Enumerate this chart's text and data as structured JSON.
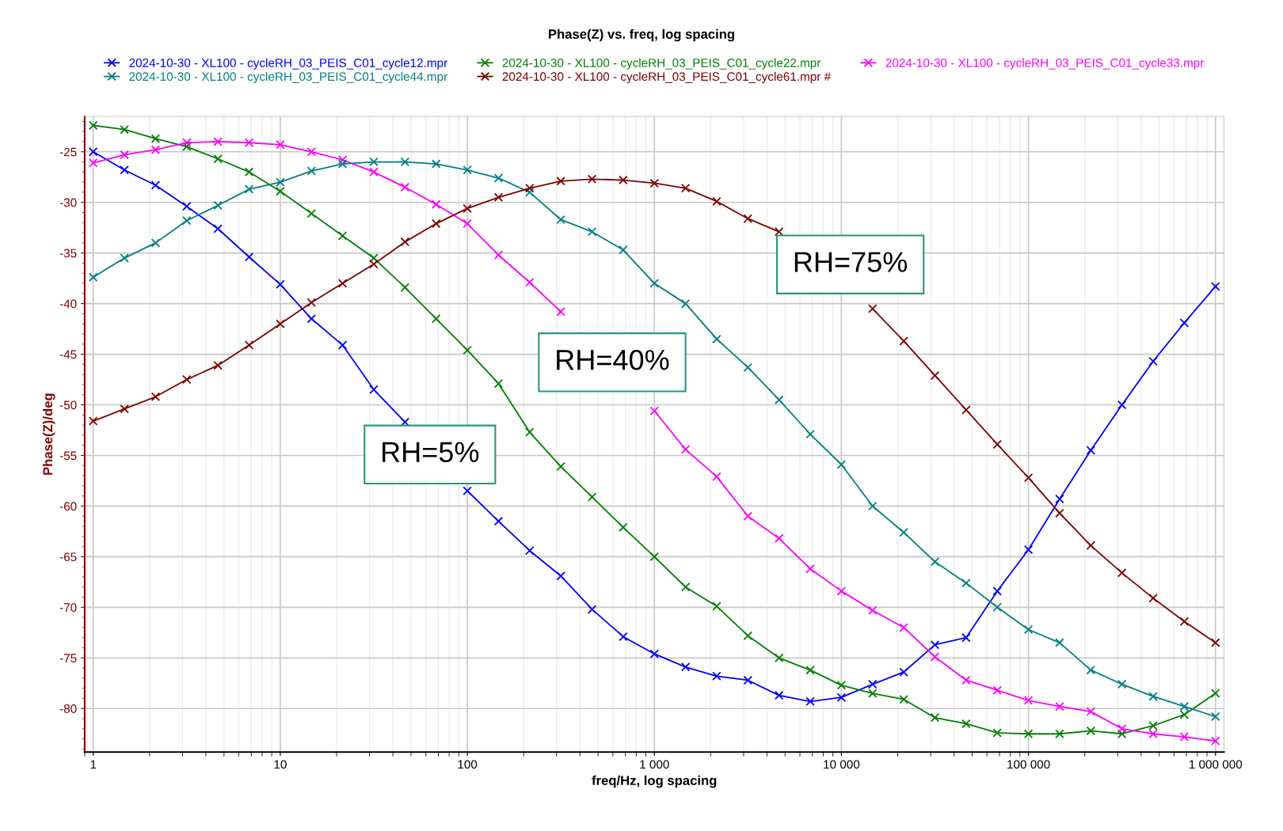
{
  "chart_data": {
    "type": "line",
    "title": "Phase(Z) vs. freq, log spacing",
    "xlabel": "freq/Hz, log spacing",
    "ylabel": "Phase(Z)/deg",
    "x": [
      1,
      1.468,
      2.154,
      3.162,
      4.642,
      6.813,
      10,
      14.68,
      21.54,
      31.62,
      46.42,
      68.13,
      100,
      146.8,
      215.4,
      316.2,
      464.2,
      681.3,
      1000,
      1468,
      2154,
      3162,
      4642,
      6813,
      10000,
      14680,
      21540,
      31620,
      46420,
      68130,
      100000,
      146800,
      215400,
      316200,
      464200,
      681300,
      1000000
    ],
    "series": [
      {
        "name": "2024-10-30 - XL100 - cycleRH_03_PEIS_C01_cycle12.mpr",
        "color": "#0000ff",
        "values": [
          -25.0,
          -26.8,
          -28.3,
          -30.4,
          -32.6,
          -35.4,
          -38.1,
          -41.5,
          -44.1,
          -48.5,
          -51.7,
          null,
          -58.5,
          -61.5,
          -64.4,
          -66.9,
          -70.2,
          -72.9,
          -74.6,
          -75.9,
          -76.8,
          -77.2,
          -78.7,
          -79.3,
          -78.9,
          -77.6,
          -76.4,
          -73.7,
          -73.0,
          -68.4,
          -64.3,
          -59.3,
          -54.5,
          -50.0,
          -45.7,
          -41.9,
          -38.3
        ]
      },
      {
        "name": "2024-10-30 - XL100 - cycleRH_03_PEIS_C01_cycle22.mpr",
        "color": "#008000",
        "values": [
          -22.4,
          -22.8,
          -23.7,
          -24.5,
          -25.7,
          -27.0,
          -28.9,
          -31.1,
          -33.3,
          -35.5,
          -38.4,
          -41.5,
          -44.6,
          -47.9,
          -52.7,
          -56.1,
          -59.1,
          -62.1,
          -65.0,
          -68.0,
          -69.9,
          -72.8,
          -75.0,
          -76.2,
          -77.7,
          -78.5,
          -79.1,
          -80.9,
          -81.5,
          -82.4,
          -82.5,
          -82.5,
          -82.2,
          -82.5,
          -81.7,
          -80.6,
          -78.5
        ]
      },
      {
        "name": "2024-10-30 - XL100 - cycleRH_03_PEIS_C01_cycle33.mpr",
        "color": "#ff00ff",
        "values": [
          -26.1,
          -25.3,
          -24.8,
          -24.1,
          -24.0,
          -24.1,
          -24.3,
          -25.0,
          -25.8,
          -27.0,
          -28.5,
          -30.2,
          -32.1,
          -35.2,
          -37.9,
          -40.8,
          null,
          null,
          -50.6,
          -54.4,
          -57.1,
          -61.0,
          -63.2,
          -66.2,
          -68.4,
          -70.3,
          -72.0,
          -74.9,
          -77.2,
          -78.2,
          -79.2,
          -79.8,
          -80.3,
          -82.0,
          -82.5,
          -82.8,
          -83.2
        ]
      },
      {
        "name": "2024-10-30 - XL100 - cycleRH_03_PEIS_C01_cycle44.mpr",
        "color": "#008080",
        "values": [
          -37.4,
          -35.5,
          -34.0,
          -31.8,
          -30.3,
          -28.7,
          -28.0,
          -26.9,
          -26.2,
          -26.0,
          -26.0,
          -26.2,
          -26.8,
          -27.6,
          -29.0,
          -31.7,
          -32.9,
          -34.7,
          -38.0,
          -40.0,
          -43.5,
          -46.3,
          -49.5,
          -52.9,
          -55.9,
          -60.0,
          -62.6,
          -65.5,
          -67.6,
          -70.0,
          -72.2,
          -73.5,
          -76.2,
          -77.6,
          -78.8,
          -79.8,
          -80.8
        ]
      },
      {
        "name": "2024-10-30 - XL100 - cycleRH_03_PEIS_C01_cycle61.mpr #",
        "color": "#800000",
        "values": [
          -51.6,
          -50.4,
          -49.2,
          -47.5,
          -46.1,
          -44.1,
          -42.0,
          -39.9,
          -38.0,
          -36.1,
          -33.9,
          -32.1,
          -30.6,
          -29.5,
          -28.6,
          -27.9,
          -27.7,
          -27.8,
          -28.1,
          -28.6,
          -29.9,
          -31.6,
          -32.9,
          null,
          null,
          -40.5,
          -43.7,
          -47.1,
          -50.5,
          -53.9,
          -57.2,
          -60.7,
          -63.9,
          -66.6,
          -69.1,
          -71.4,
          -73.5
        ]
      }
    ],
    "annotations": [
      "RH=5%",
      "RH=40%",
      "RH=75%"
    ],
    "log": "x",
    "xlim": [
      0.9,
      1110000
    ],
    "ylim": [
      -84.3,
      -21.5
    ],
    "xticks": [
      1,
      10,
      100,
      {
        "value": 1000,
        "label": "1 000"
      },
      {
        "value": 10000,
        "label": "10 000"
      },
      {
        "value": 100000,
        "label": "100 000"
      },
      {
        "value": 1000000,
        "label": "1 000 000"
      }
    ],
    "yticks": [
      -25,
      -30,
      -35,
      -40,
      -45,
      -50,
      -55,
      -60,
      -65,
      -70,
      -75,
      -80
    ],
    "grid": true,
    "legend": "top",
    "marker": "cross",
    "line_style": "solid"
  }
}
